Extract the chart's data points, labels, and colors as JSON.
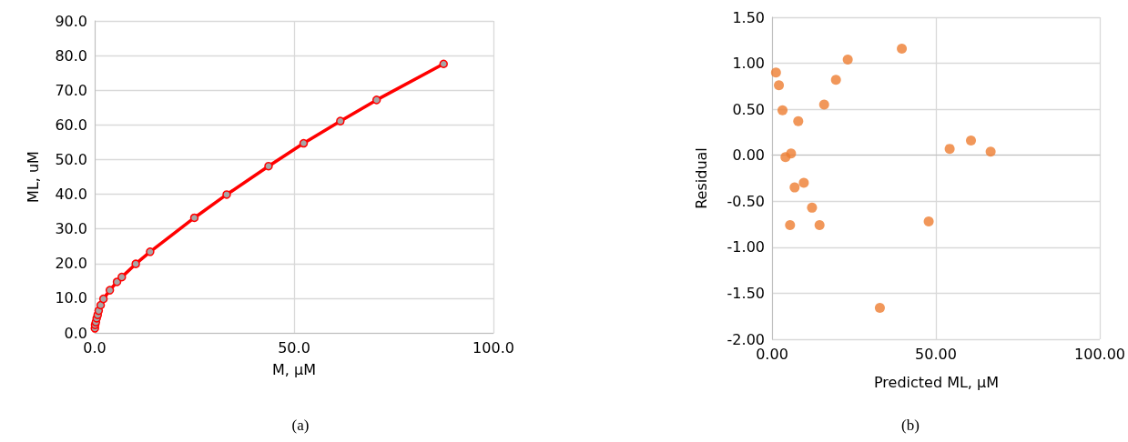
{
  "chart_data": [
    {
      "type": "line",
      "xlabel": "M, μM",
      "ylabel": "ML, uM",
      "annotations": [
        "(a)"
      ],
      "series": [
        {
          "color": "#ff0000",
          "x": [
            0.05,
            0.1,
            0.3,
            0.5,
            0.75,
            1.0,
            1.5,
            2.2,
            3.8,
            5.6,
            6.8,
            10.3,
            13.9,
            25.0,
            33.1,
            43.6,
            52.4,
            61.6,
            70.7,
            87.5
          ],
          "values": [
            1.3,
            2.3,
            3.1,
            4.2,
            5.2,
            6.4,
            8.0,
            9.8,
            12.3,
            14.7,
            16.1,
            19.9,
            23.4,
            33.2,
            39.9,
            48.1,
            54.7,
            61.1,
            67.2,
            77.6
          ]
        }
      ],
      "xlim": [
        0,
        100
      ],
      "xticks": [
        {
          "value": 0,
          "label": "0.0"
        },
        {
          "value": 50,
          "label": "50.0"
        },
        {
          "value": 100,
          "label": "100.0"
        }
      ],
      "ylim": [
        0,
        90
      ],
      "yticks": [
        {
          "value": 0,
          "label": "0.0"
        },
        {
          "value": 10,
          "label": "10.0"
        },
        {
          "value": 20,
          "label": "20.0"
        },
        {
          "value": 30,
          "label": "30.0"
        },
        {
          "value": 40,
          "label": "40.0"
        },
        {
          "value": 50,
          "label": "50.0"
        },
        {
          "value": 60,
          "label": "60.0"
        },
        {
          "value": 70,
          "label": "70.0"
        },
        {
          "value": 80,
          "label": "80.0"
        },
        {
          "value": 90,
          "label": "90.0"
        }
      ],
      "grid": true,
      "marker": "circle",
      "line_style": "solid"
    },
    {
      "type": "scatter",
      "xlabel": "Predicted ML, μM",
      "ylabel": "Residual",
      "annotations": [
        "(b)"
      ],
      "series": [
        {
          "color": "#ed7d31",
          "x": [
            1.2,
            2.1,
            3.2,
            8.0,
            15.9,
            19.5,
            23.1,
            39.6,
            4.1,
            5.8,
            6.9,
            9.7,
            5.5,
            12.2,
            14.5,
            32.9,
            47.8,
            54.2,
            60.7,
            66.7
          ],
          "values": [
            0.9,
            0.76,
            0.49,
            0.37,
            0.55,
            0.82,
            1.04,
            1.16,
            -0.02,
            0.02,
            -0.35,
            -0.3,
            -0.76,
            -0.57,
            -0.76,
            -1.66,
            -0.72,
            0.07,
            0.16,
            0.04
          ]
        }
      ],
      "xlim": [
        0,
        100
      ],
      "xticks": [
        {
          "value": 0,
          "label": "0.00"
        },
        {
          "value": 50,
          "label": "50.00"
        },
        {
          "value": 100,
          "label": "100.00"
        }
      ],
      "ylim": [
        -2,
        1.5
      ],
      "yticks": [
        {
          "value": -2,
          "label": "-2.00"
        },
        {
          "value": -1.5,
          "label": "-1.50"
        },
        {
          "value": -1,
          "label": "-1.00"
        },
        {
          "value": -0.5,
          "label": "-0.50"
        },
        {
          "value": 0,
          "label": "0.00"
        },
        {
          "value": 0.5,
          "label": "0.50"
        },
        {
          "value": 1,
          "label": "1.00"
        },
        {
          "value": 1.5,
          "label": "1.50"
        }
      ],
      "grid": true,
      "marker": "circle"
    }
  ]
}
